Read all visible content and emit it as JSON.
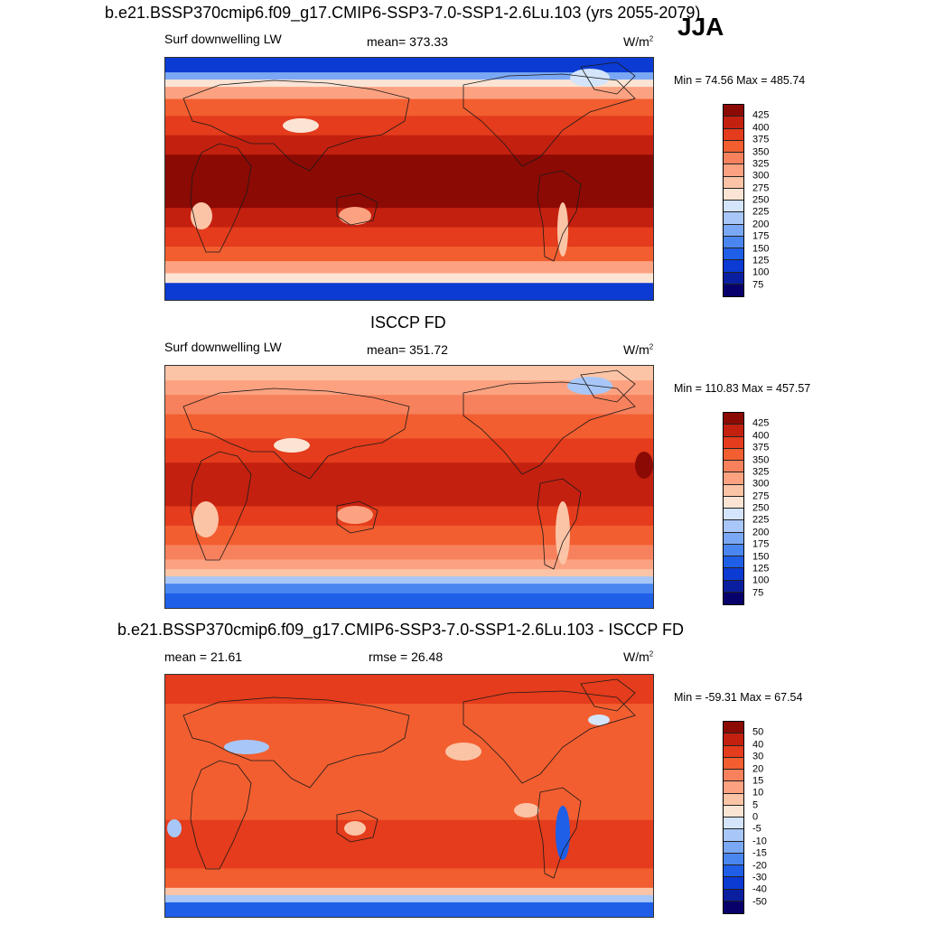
{
  "season": "JJA",
  "colors": {
    "ocean_outline": "#1a1a1a",
    "seq_scale": [
      "#08006a",
      "#0a1ea0",
      "#0b3bd2",
      "#1f5fe8",
      "#4a86f0",
      "#7aa8f4",
      "#a8c7f8",
      "#d3e4fb",
      "#fbe4d4",
      "#fcc4a6",
      "#fca281",
      "#f7815c",
      "#f25e30",
      "#e43c1c",
      "#c4200f",
      "#8c0a04"
    ],
    "diff_scale": [
      "#08006a",
      "#0a1ea0",
      "#0b3bd2",
      "#1f5fe8",
      "#4a86f0",
      "#7aa8f4",
      "#a8c7f8",
      "#d3e4fb",
      "#fbe4d4",
      "#fcc4a6",
      "#fca281",
      "#f7815c",
      "#f25e30",
      "#e43c1c",
      "#c4200f",
      "#8c0a04"
    ]
  },
  "panels": [
    {
      "title": "b.e21.BSSP370cmip6.f09_g17.CMIP6-SSP3-7.0-SSP1-2.6Lu.103 (yrs 2055-2079)",
      "left_label": "Surf downwelling LW",
      "center_label": "mean= 373.33",
      "units": "W/m",
      "units_sup": "2",
      "minmax": "Min =  74.56 Max = 485.74",
      "colorbar_ticks": [
        "425",
        "400",
        "375",
        "350",
        "325",
        "300",
        "275",
        "250",
        "225",
        "200",
        "175",
        "150",
        "125",
        "100",
        "75"
      ],
      "field_level": "high"
    },
    {
      "title": "ISCCP FD",
      "left_label": "Surf downwelling LW",
      "center_label": "mean= 351.72",
      "units": "W/m",
      "units_sup": "2",
      "minmax": "Min = 110.83 Max = 457.57",
      "colorbar_ticks": [
        "425",
        "400",
        "375",
        "350",
        "325",
        "300",
        "275",
        "250",
        "225",
        "200",
        "175",
        "150",
        "125",
        "100",
        "75"
      ],
      "field_level": "medium"
    },
    {
      "title": "b.e21.BSSP370cmip6.f09_g17.CMIP6-SSP3-7.0-SSP1-2.6Lu.103 - ISCCP FD",
      "left_label": "mean =  21.61",
      "center_label": "rmse =  26.48",
      "units": "W/m",
      "units_sup": "2",
      "minmax": "Min = -59.31 Max =  67.54",
      "colorbar_ticks": [
        "50",
        "40",
        "30",
        "20",
        "15",
        "10",
        "5",
        "0",
        "-5",
        "-10",
        "-15",
        "-20",
        "-30",
        "-40",
        "-50"
      ],
      "field_level": "diff"
    }
  ]
}
